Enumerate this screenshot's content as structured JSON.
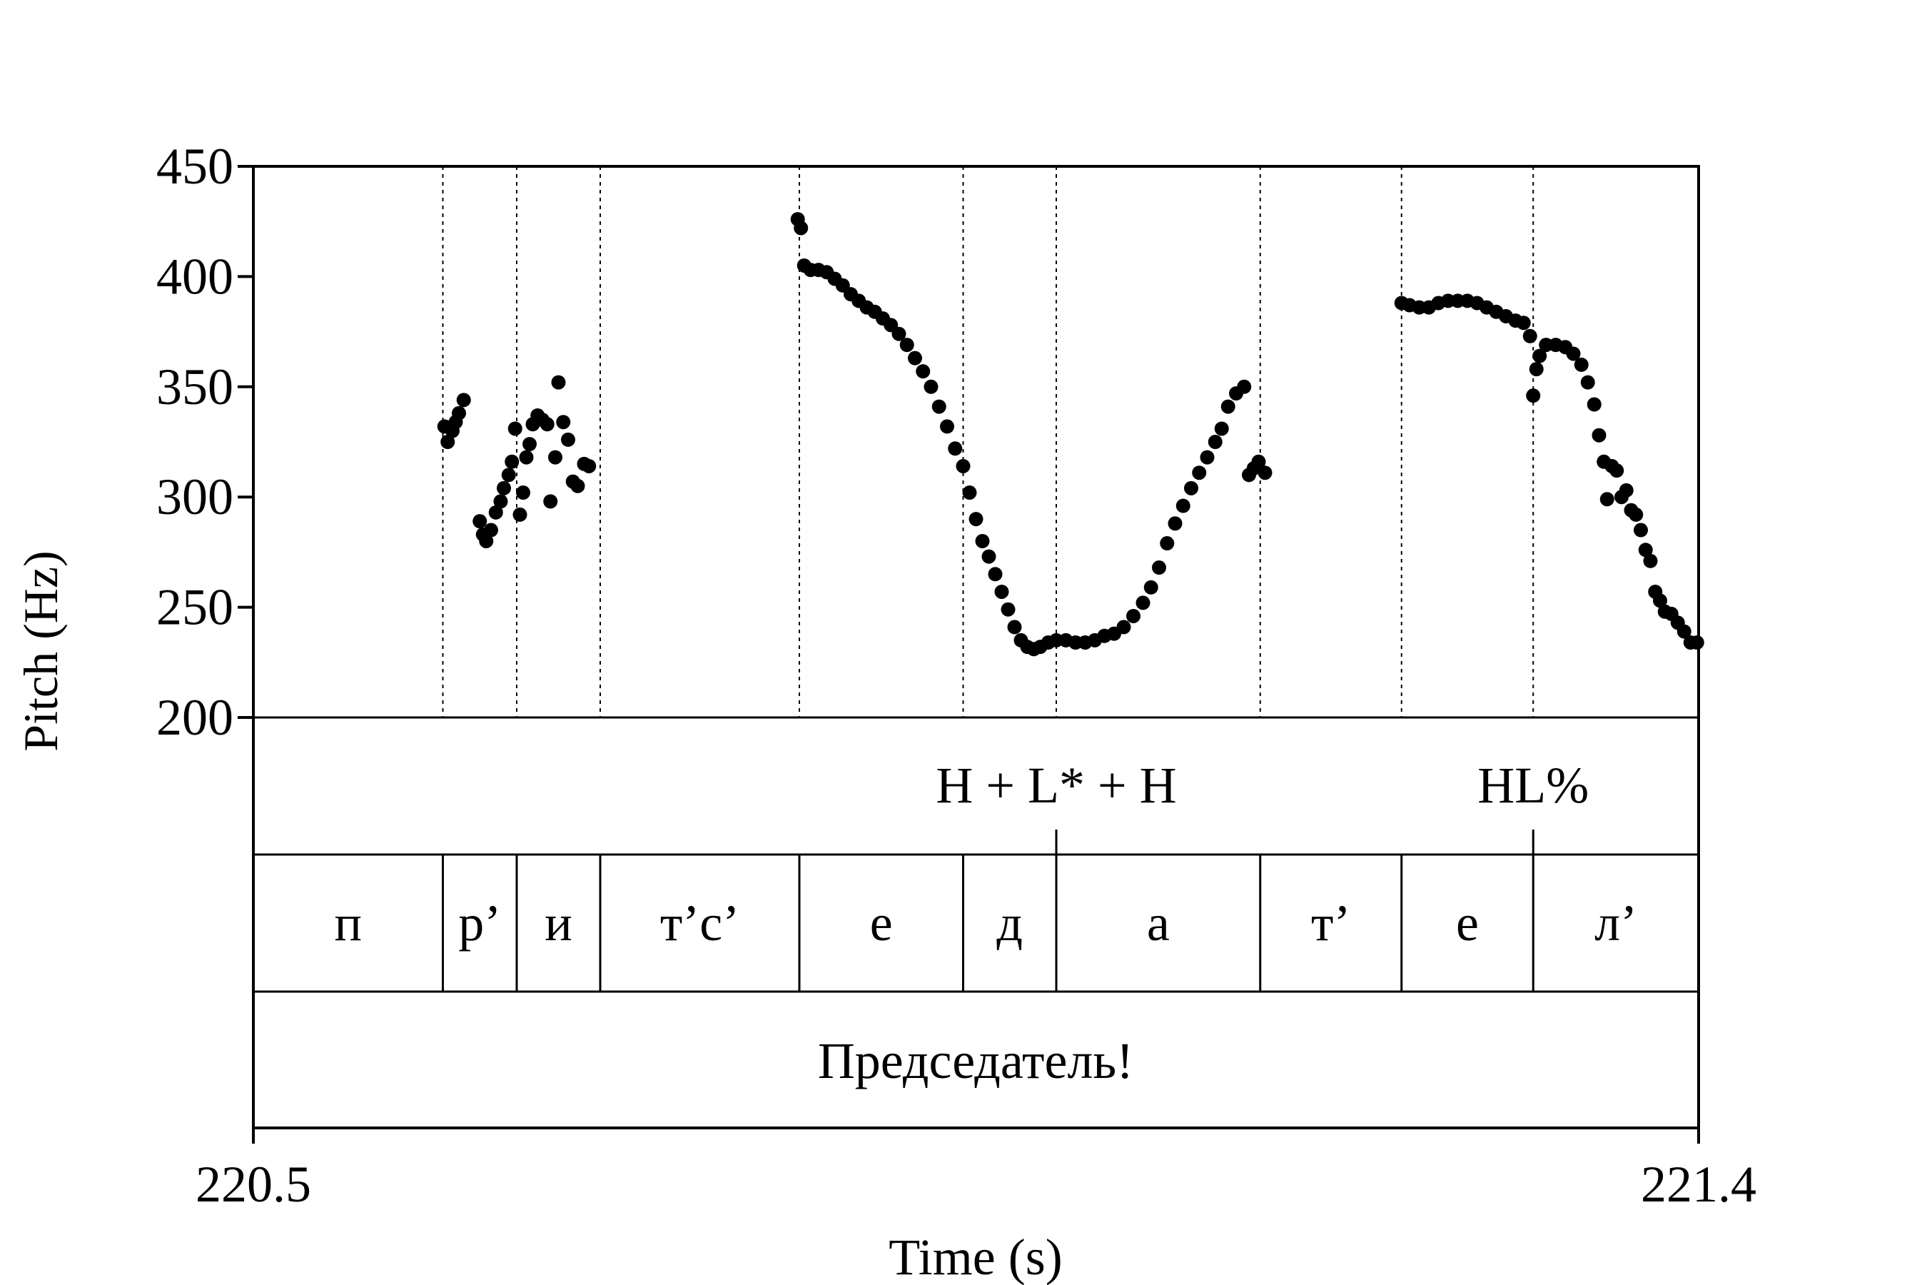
{
  "chart_data": {
    "type": "scatter",
    "xlabel": "Time (s)",
    "ylabel": "Pitch (Hz)",
    "ylim": [
      200,
      450
    ],
    "xlim": [
      220.5,
      221.4
    ],
    "y_ticks": [
      "450",
      "400",
      "350",
      "300",
      "250",
      "200"
    ],
    "x_tick_labels": [
      "220.5",
      "221.4"
    ],
    "grid": false,
    "segment_boundaries": [
      220.618,
      220.664,
      220.716,
      220.84,
      220.942,
      221.0,
      221.127,
      221.215,
      221.297
    ],
    "tones": [
      {
        "label": "H + L* + H",
        "time": 221.0
      },
      {
        "label": "HL%",
        "time": 221.297
      }
    ],
    "segments": [
      {
        "label": "п",
        "start": 220.5,
        "end": 220.618
      },
      {
        "label": "р’",
        "start": 220.618,
        "end": 220.664
      },
      {
        "label": "и",
        "start": 220.664,
        "end": 220.716
      },
      {
        "label": "т’с’",
        "start": 220.716,
        "end": 220.84
      },
      {
        "label": "е",
        "start": 220.84,
        "end": 220.942
      },
      {
        "label": "д",
        "start": 220.942,
        "end": 221.0
      },
      {
        "label": "а",
        "start": 221.0,
        "end": 221.127
      },
      {
        "label": "т’",
        "start": 221.127,
        "end": 221.215
      },
      {
        "label": "е",
        "start": 221.215,
        "end": 221.297
      },
      {
        "label": "л’",
        "start": 221.297,
        "end": 221.4
      }
    ],
    "word": {
      "label": "Председатель!",
      "start": 220.5,
      "end": 221.4
    },
    "pitch_points": [
      [
        220.619,
        332
      ],
      [
        220.621,
        325
      ],
      [
        220.624,
        330
      ],
      [
        220.626,
        334
      ],
      [
        220.628,
        338
      ],
      [
        220.631,
        344
      ],
      [
        220.641,
        289
      ],
      [
        220.643,
        283
      ],
      [
        220.645,
        280
      ],
      [
        220.648,
        285
      ],
      [
        220.651,
        293
      ],
      [
        220.654,
        298
      ],
      [
        220.656,
        304
      ],
      [
        220.659,
        310
      ],
      [
        220.661,
        316
      ],
      [
        220.663,
        331
      ],
      [
        220.666,
        292
      ],
      [
        220.668,
        302
      ],
      [
        220.67,
        318
      ],
      [
        220.672,
        324
      ],
      [
        220.674,
        333
      ],
      [
        220.677,
        337
      ],
      [
        220.68,
        335
      ],
      [
        220.683,
        333
      ],
      [
        220.685,
        298
      ],
      [
        220.688,
        318
      ],
      [
        220.69,
        352
      ],
      [
        220.693,
        334
      ],
      [
        220.696,
        326
      ],
      [
        220.699,
        307
      ],
      [
        220.702,
        305
      ],
      [
        220.706,
        315
      ],
      [
        220.709,
        314
      ],
      [
        220.839,
        426
      ],
      [
        220.841,
        422
      ],
      [
        220.843,
        405
      ],
      [
        220.847,
        403
      ],
      [
        220.852,
        403
      ],
      [
        220.857,
        402
      ],
      [
        220.862,
        399
      ],
      [
        220.867,
        396
      ],
      [
        220.872,
        392
      ],
      [
        220.877,
        389
      ],
      [
        220.882,
        386
      ],
      [
        220.887,
        384
      ],
      [
        220.892,
        381
      ],
      [
        220.897,
        378
      ],
      [
        220.902,
        374
      ],
      [
        220.907,
        369
      ],
      [
        220.912,
        363
      ],
      [
        220.917,
        357
      ],
      [
        220.922,
        350
      ],
      [
        220.927,
        341
      ],
      [
        220.932,
        332
      ],
      [
        220.937,
        322
      ],
      [
        220.942,
        314
      ],
      [
        220.946,
        302
      ],
      [
        220.95,
        290
      ],
      [
        220.954,
        280
      ],
      [
        220.958,
        273
      ],
      [
        220.962,
        265
      ],
      [
        220.966,
        257
      ],
      [
        220.97,
        249
      ],
      [
        220.974,
        241
      ],
      [
        220.978,
        235
      ],
      [
        220.982,
        232
      ],
      [
        220.986,
        231
      ],
      [
        220.99,
        232
      ],
      [
        220.995,
        234
      ],
      [
        221.0,
        235
      ],
      [
        221.006,
        235
      ],
      [
        221.012,
        234
      ],
      [
        221.018,
        234
      ],
      [
        221.024,
        235
      ],
      [
        221.03,
        237
      ],
      [
        221.036,
        238
      ],
      [
        221.042,
        241
      ],
      [
        221.048,
        246
      ],
      [
        221.054,
        252
      ],
      [
        221.059,
        259
      ],
      [
        221.064,
        268
      ],
      [
        221.069,
        279
      ],
      [
        221.074,
        288
      ],
      [
        221.079,
        296
      ],
      [
        221.084,
        304
      ],
      [
        221.089,
        311
      ],
      [
        221.094,
        318
      ],
      [
        221.099,
        325
      ],
      [
        221.103,
        331
      ],
      [
        221.107,
        341
      ],
      [
        221.112,
        347
      ],
      [
        221.117,
        350
      ],
      [
        221.12,
        310
      ],
      [
        221.123,
        313
      ],
      [
        221.126,
        316
      ],
      [
        221.13,
        311
      ],
      [
        221.215,
        388
      ],
      [
        221.22,
        387
      ],
      [
        221.226,
        386
      ],
      [
        221.232,
        386
      ],
      [
        221.238,
        388
      ],
      [
        221.244,
        389
      ],
      [
        221.25,
        389
      ],
      [
        221.256,
        389
      ],
      [
        221.262,
        388
      ],
      [
        221.268,
        386
      ],
      [
        221.274,
        384
      ],
      [
        221.28,
        382
      ],
      [
        221.286,
        380
      ],
      [
        221.291,
        379
      ],
      [
        221.295,
        373
      ],
      [
        221.297,
        346
      ],
      [
        221.299,
        358
      ],
      [
        221.301,
        364
      ],
      [
        221.305,
        369
      ],
      [
        221.311,
        369
      ],
      [
        221.317,
        368
      ],
      [
        221.322,
        365
      ],
      [
        221.327,
        360
      ],
      [
        221.331,
        352
      ],
      [
        221.335,
        342
      ],
      [
        221.338,
        328
      ],
      [
        221.341,
        316
      ],
      [
        221.343,
        299
      ],
      [
        221.346,
        314
      ],
      [
        221.349,
        312
      ],
      [
        221.352,
        300
      ],
      [
        221.355,
        303
      ],
      [
        221.358,
        294
      ],
      [
        221.361,
        292
      ],
      [
        221.364,
        285
      ],
      [
        221.367,
        276
      ],
      [
        221.37,
        271
      ],
      [
        221.373,
        257
      ],
      [
        221.376,
        253
      ],
      [
        221.379,
        248
      ],
      [
        221.383,
        247
      ],
      [
        221.387,
        243
      ],
      [
        221.391,
        239
      ],
      [
        221.395,
        234
      ],
      [
        221.399,
        234
      ]
    ]
  }
}
